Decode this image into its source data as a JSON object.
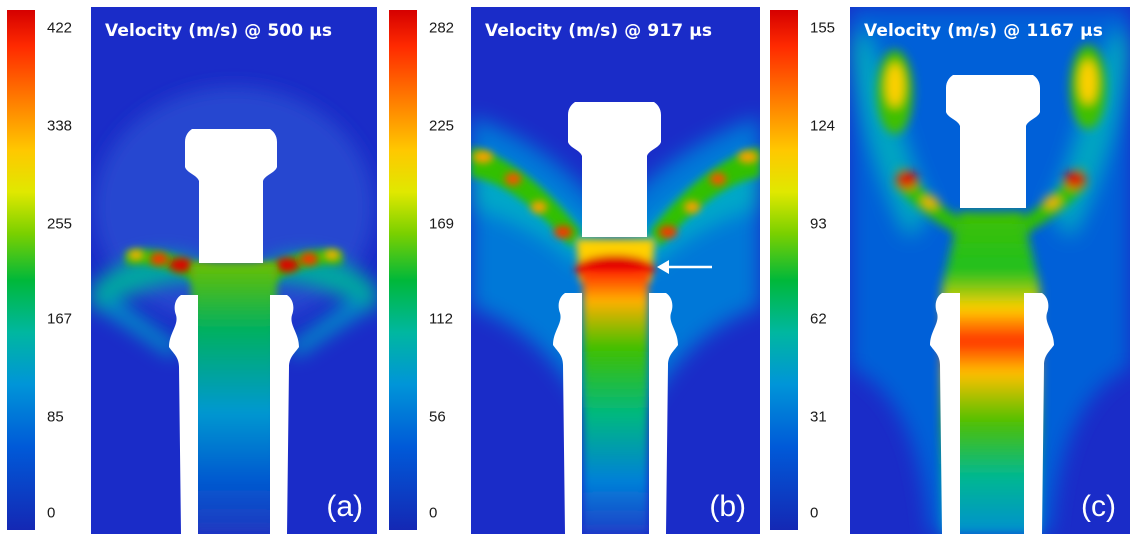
{
  "panels": [
    {
      "title": "Velocity (m/s) @ 500 µs",
      "label": "(a)",
      "colorbar_ticks": [
        "422",
        "338",
        "255",
        "167",
        "85",
        "0"
      ]
    },
    {
      "title": "Velocity (m/s)  @ 917 µs",
      "label": "(b)",
      "colorbar_ticks": [
        "282",
        "225",
        "169",
        "112",
        "56",
        "0"
      ]
    },
    {
      "title": "Velocity (m/s) @ 1167 µs",
      "label": "(c)",
      "colorbar_ticks": [
        "155",
        "124",
        "93",
        "62",
        "31",
        "0"
      ]
    }
  ],
  "colors": {
    "background_field": "#1a2cc8",
    "solid": "#ffffff",
    "colormap": [
      "#d50000",
      "#ff7a00",
      "#ffc800",
      "#e0e800",
      "#7ad000",
      "#00b83a",
      "#00b7a0",
      "#0095d8",
      "#005ad8",
      "#1428b4"
    ]
  },
  "annotations": {
    "arrow_panel": "b",
    "arrow_icon": "left-arrow-icon"
  }
}
